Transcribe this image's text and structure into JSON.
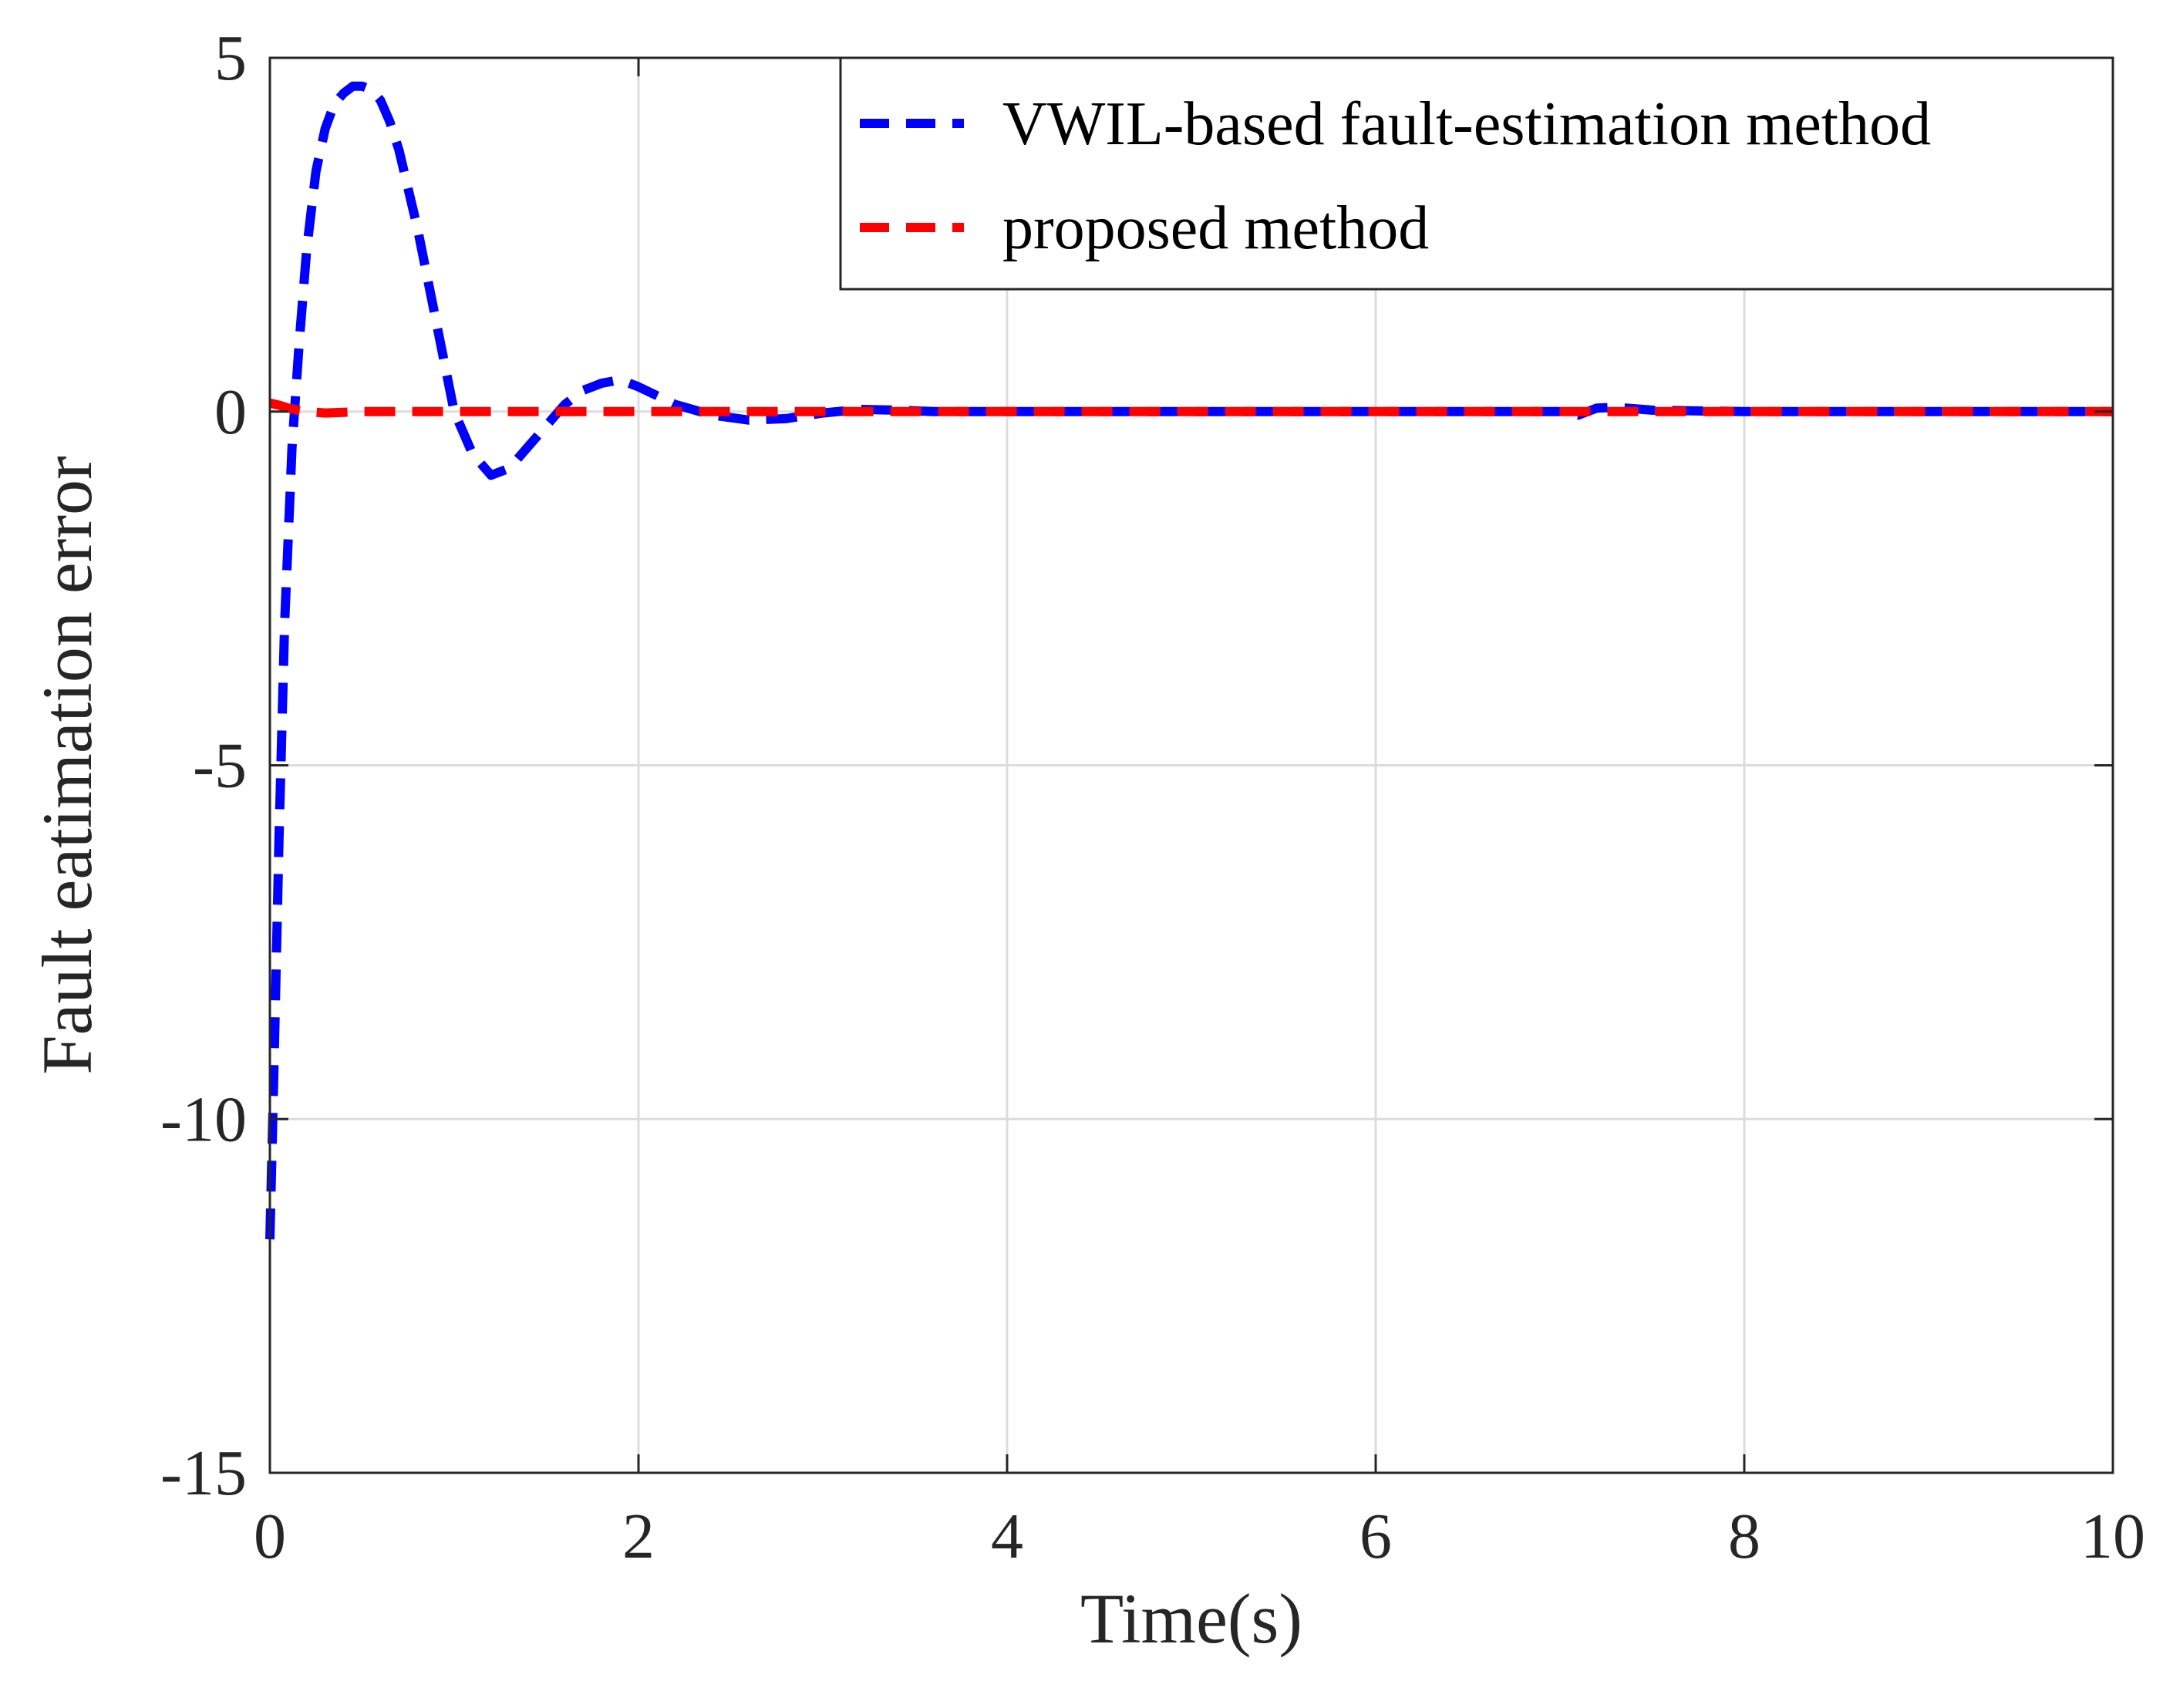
{
  "chart_data": {
    "type": "line",
    "title": "",
    "xlabel": "Time(s)",
    "ylabel": "Fault eatimation error",
    "xlim": [
      0,
      10
    ],
    "ylim": [
      -15,
      5
    ],
    "xticks": [
      0,
      2,
      4,
      6,
      8,
      10
    ],
    "yticks": [
      -15,
      -10,
      -5,
      0,
      5
    ],
    "xtick_labels": [
      "0",
      "2",
      "4",
      "6",
      "8",
      "10"
    ],
    "ytick_labels": [
      "-15",
      "-10",
      "-5",
      "0",
      "5"
    ],
    "grid": true,
    "legend_position": "top-right",
    "series": [
      {
        "name": "VWIL-based fault-estimation method",
        "color": "#0000ff",
        "dash": "dashed",
        "x": [
          0,
          0.02,
          0.05,
          0.08,
          0.12,
          0.16,
          0.2,
          0.25,
          0.3,
          0.35,
          0.4,
          0.45,
          0.5,
          0.55,
          0.6,
          0.65,
          0.7,
          0.8,
          0.9,
          1.0,
          1.1,
          1.2,
          1.3,
          1.4,
          1.5,
          1.6,
          1.7,
          1.8,
          1.9,
          2.0,
          2.2,
          2.4,
          2.6,
          2.8,
          3.0,
          3.2,
          3.4,
          3.6,
          4.0,
          5.0,
          6.0,
          7.0,
          7.1,
          7.2,
          7.3,
          7.5,
          8.0,
          9.0,
          10.0
        ],
        "y": [
          -11.7,
          -9.5,
          -6.0,
          -3.0,
          -0.5,
          1.0,
          2.3,
          3.4,
          4.0,
          4.35,
          4.5,
          4.6,
          4.6,
          4.55,
          4.4,
          4.1,
          3.7,
          2.6,
          1.3,
          0.0,
          -0.6,
          -0.9,
          -0.8,
          -0.5,
          -0.2,
          0.1,
          0.3,
          0.4,
          0.45,
          0.35,
          0.1,
          -0.05,
          -0.12,
          -0.1,
          -0.02,
          0.03,
          0.02,
          0.0,
          0.0,
          0.0,
          0.0,
          0.0,
          -0.05,
          0.05,
          0.06,
          0.02,
          0.0,
          0.0,
          0.0
        ]
      },
      {
        "name": "proposed method",
        "color": "#ff0000",
        "dash": "dashed",
        "x": [
          0,
          0.05,
          0.1,
          0.15,
          0.2,
          0.3,
          0.4,
          0.5,
          0.7,
          1.0,
          2.0,
          4.0,
          6.0,
          8.0,
          10.0
        ],
        "y": [
          0.12,
          0.09,
          0.05,
          0.02,
          0.0,
          -0.02,
          -0.01,
          0.0,
          0.0,
          0.0,
          0.0,
          0.0,
          0.0,
          0.0,
          0.0
        ]
      }
    ]
  }
}
